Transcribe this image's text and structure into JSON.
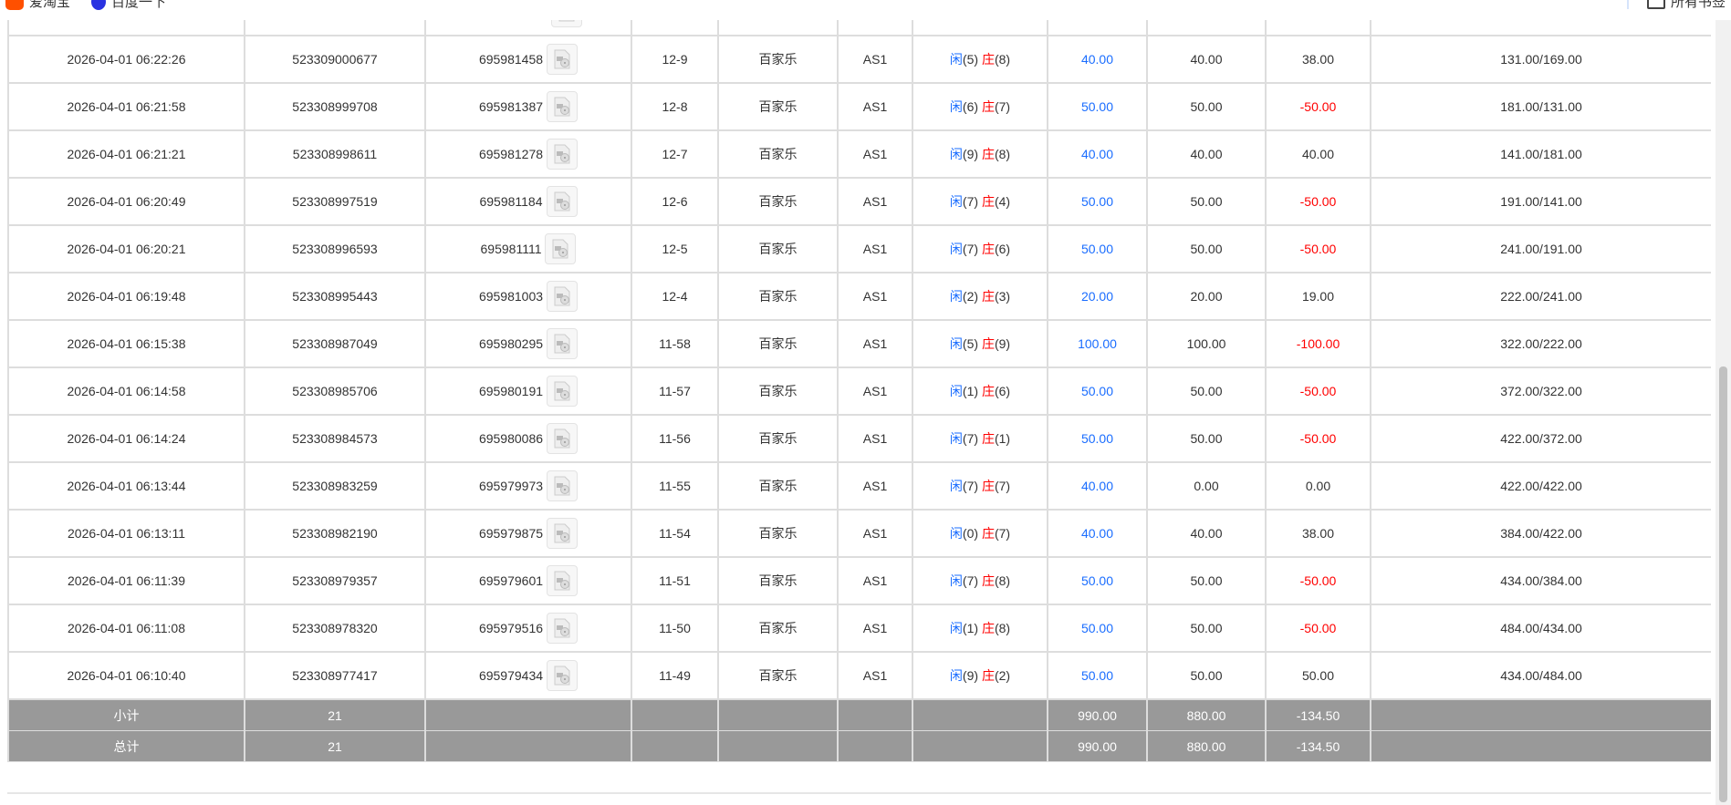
{
  "bookmarks": {
    "items": [
      {
        "label": "爱淘宝",
        "icon": "aitaobao-icon",
        "color": "#ff5000"
      },
      {
        "label": "百度一下",
        "icon": "baidu-icon",
        "color": "#2932e1"
      }
    ],
    "all_bookmarks": "所有书签"
  },
  "colors": {
    "player": "#1a6dff",
    "banker": "#ff0000",
    "negative": "#ff0000",
    "footer_bg": "#999999"
  },
  "table": {
    "player_label": "闲",
    "banker_label": "庄",
    "rows": [
      {
        "time": "2026-04-01 06:22:26",
        "order": "523309000677",
        "round": "695981458",
        "shoe": "12-9",
        "game": "百家乐",
        "table": "AS1",
        "player": "5",
        "banker": "8",
        "bet": "40.00",
        "valid": "40.00",
        "win": "38.00",
        "balance": "131.00/169.00"
      },
      {
        "time": "2026-04-01 06:21:58",
        "order": "523308999708",
        "round": "695981387",
        "shoe": "12-8",
        "game": "百家乐",
        "table": "AS1",
        "player": "6",
        "banker": "7",
        "bet": "50.00",
        "valid": "50.00",
        "win": "-50.00",
        "balance": "181.00/131.00"
      },
      {
        "time": "2026-04-01 06:21:21",
        "order": "523308998611",
        "round": "695981278",
        "shoe": "12-7",
        "game": "百家乐",
        "table": "AS1",
        "player": "9",
        "banker": "8",
        "bet": "40.00",
        "valid": "40.00",
        "win": "40.00",
        "balance": "141.00/181.00"
      },
      {
        "time": "2026-04-01 06:20:49",
        "order": "523308997519",
        "round": "695981184",
        "shoe": "12-6",
        "game": "百家乐",
        "table": "AS1",
        "player": "7",
        "banker": "4",
        "bet": "50.00",
        "valid": "50.00",
        "win": "-50.00",
        "balance": "191.00/141.00"
      },
      {
        "time": "2026-04-01 06:20:21",
        "order": "523308996593",
        "round": "695981111",
        "shoe": "12-5",
        "game": "百家乐",
        "table": "AS1",
        "player": "7",
        "banker": "6",
        "bet": "50.00",
        "valid": "50.00",
        "win": "-50.00",
        "balance": "241.00/191.00"
      },
      {
        "time": "2026-04-01 06:19:48",
        "order": "523308995443",
        "round": "695981003",
        "shoe": "12-4",
        "game": "百家乐",
        "table": "AS1",
        "player": "2",
        "banker": "3",
        "bet": "20.00",
        "valid": "20.00",
        "win": "19.00",
        "balance": "222.00/241.00"
      },
      {
        "time": "2026-04-01 06:15:38",
        "order": "523308987049",
        "round": "695980295",
        "shoe": "11-58",
        "game": "百家乐",
        "table": "AS1",
        "player": "5",
        "banker": "9",
        "bet": "100.00",
        "valid": "100.00",
        "win": "-100.00",
        "balance": "322.00/222.00"
      },
      {
        "time": "2026-04-01 06:14:58",
        "order": "523308985706",
        "round": "695980191",
        "shoe": "11-57",
        "game": "百家乐",
        "table": "AS1",
        "player": "1",
        "banker": "6",
        "bet": "50.00",
        "valid": "50.00",
        "win": "-50.00",
        "balance": "372.00/322.00"
      },
      {
        "time": "2026-04-01 06:14:24",
        "order": "523308984573",
        "round": "695980086",
        "shoe": "11-56",
        "game": "百家乐",
        "table": "AS1",
        "player": "7",
        "banker": "1",
        "bet": "50.00",
        "valid": "50.00",
        "win": "-50.00",
        "balance": "422.00/372.00"
      },
      {
        "time": "2026-04-01 06:13:44",
        "order": "523308983259",
        "round": "695979973",
        "shoe": "11-55",
        "game": "百家乐",
        "table": "AS1",
        "player": "7",
        "banker": "7",
        "bet": "40.00",
        "valid": "0.00",
        "win": "0.00",
        "balance": "422.00/422.00"
      },
      {
        "time": "2026-04-01 06:13:11",
        "order": "523308982190",
        "round": "695979875",
        "shoe": "11-54",
        "game": "百家乐",
        "table": "AS1",
        "player": "0",
        "banker": "7",
        "bet": "40.00",
        "valid": "40.00",
        "win": "38.00",
        "balance": "384.00/422.00"
      },
      {
        "time": "2026-04-01 06:11:39",
        "order": "523308979357",
        "round": "695979601",
        "shoe": "11-51",
        "game": "百家乐",
        "table": "AS1",
        "player": "7",
        "banker": "8",
        "bet": "50.00",
        "valid": "50.00",
        "win": "-50.00",
        "balance": "434.00/384.00"
      },
      {
        "time": "2026-04-01 06:11:08",
        "order": "523308978320",
        "round": "695979516",
        "shoe": "11-50",
        "game": "百家乐",
        "table": "AS1",
        "player": "1",
        "banker": "8",
        "bet": "50.00",
        "valid": "50.00",
        "win": "-50.00",
        "balance": "484.00/434.00"
      },
      {
        "time": "2026-04-01 06:10:40",
        "order": "523308977417",
        "round": "695979434",
        "shoe": "11-49",
        "game": "百家乐",
        "table": "AS1",
        "player": "9",
        "banker": "2",
        "bet": "50.00",
        "valid": "50.00",
        "win": "50.00",
        "balance": "434.00/484.00"
      }
    ],
    "subtotal": {
      "label": "小计",
      "count": "21",
      "bet": "990.00",
      "valid": "880.00",
      "win": "-134.50"
    },
    "total": {
      "label": "总计",
      "count": "21",
      "bet": "990.00",
      "valid": "880.00",
      "win": "-134.50"
    }
  }
}
